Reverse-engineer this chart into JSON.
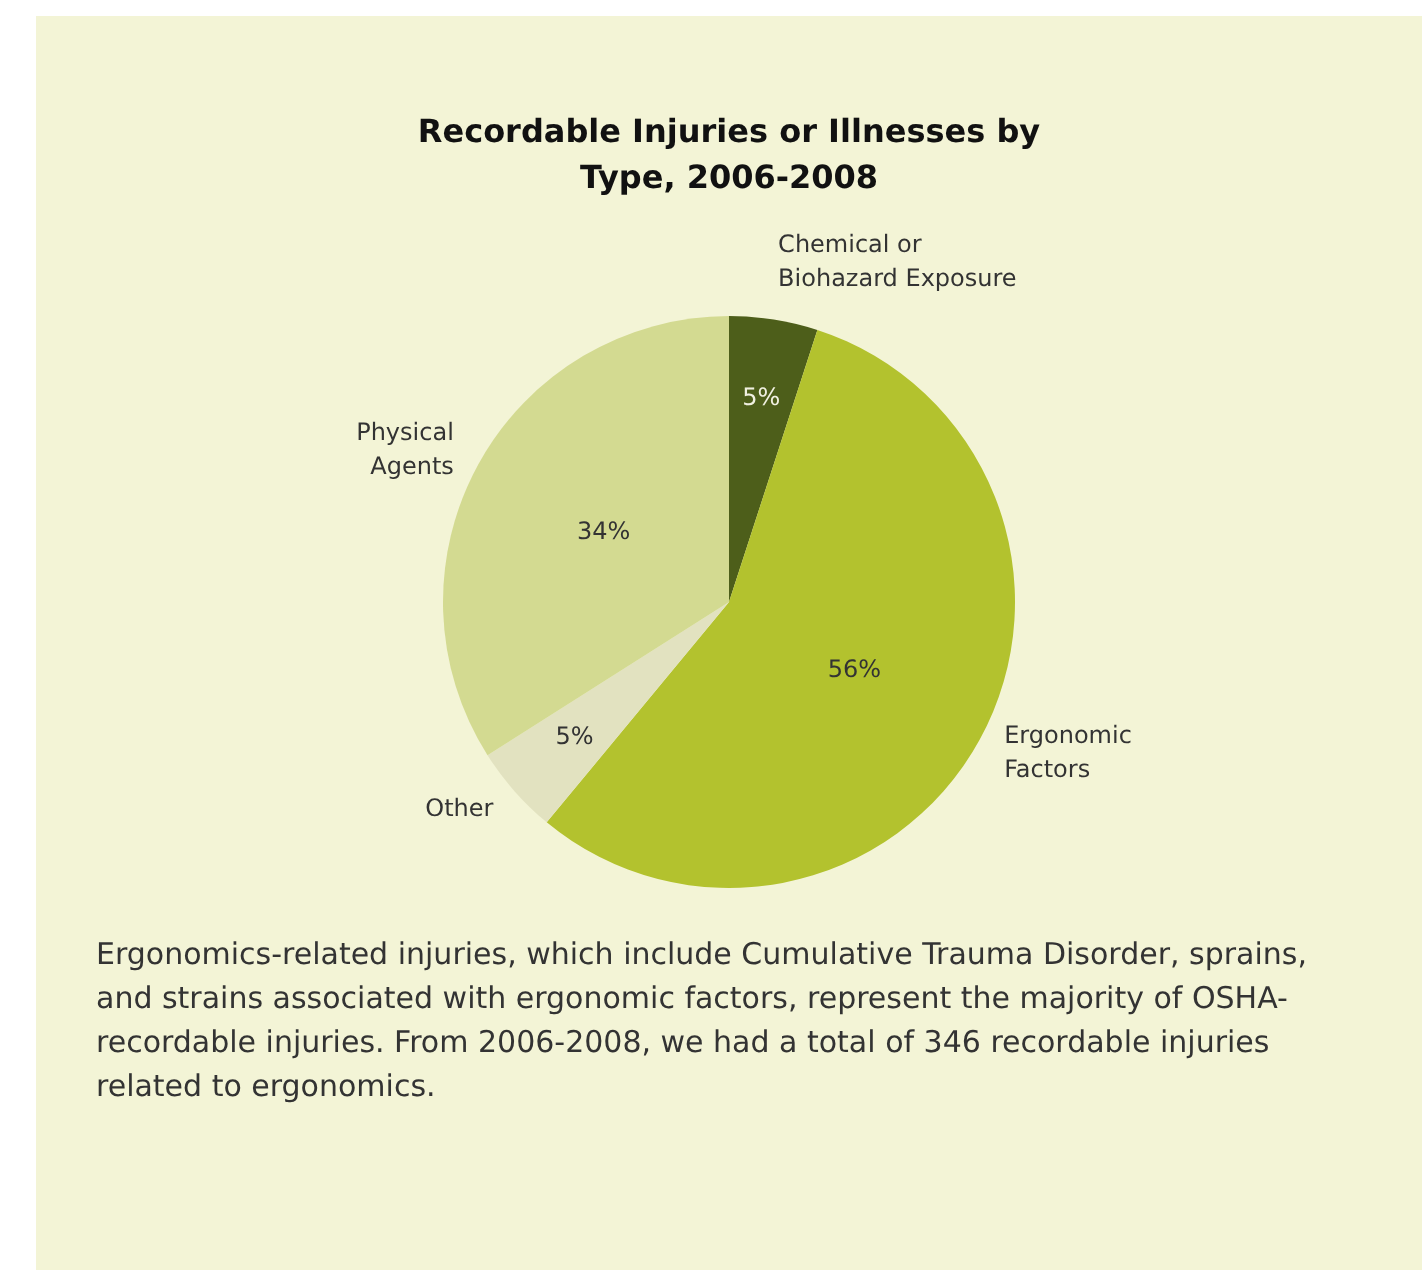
{
  "chart_data": {
    "type": "pie",
    "title": "Recordable Injuries or Illnesses by Type, 2006-2008",
    "categories": [
      "Chemical or Biohazard Exposure",
      "Ergonomic Factors",
      "Other",
      "Physical Agents"
    ],
    "values": [
      5,
      56,
      5,
      34
    ],
    "colors": [
      "#4d5e1a",
      "#b3c22e",
      "#e2e2c0",
      "#d3da91"
    ],
    "value_labels": [
      "5%",
      "56%",
      "5%",
      "34%"
    ],
    "legend": false,
    "annotations": [
      "Ergonomics-related injuries, which include Cumulative Trauma Disorder, sprains, and strains associated with ergonomic factors, represent the majority of OSHA-recordable injuries. From 2006-2008, we had a total of 346 recordable injuries related to ergonomics."
    ]
  }
}
